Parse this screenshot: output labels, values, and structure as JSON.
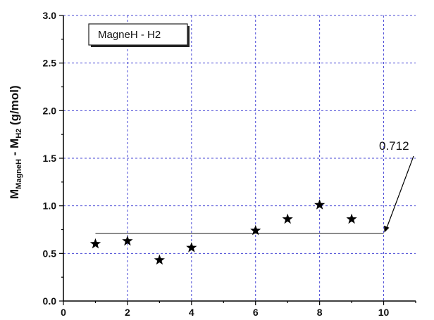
{
  "chart_data": {
    "type": "scatter",
    "xlabel_parts": {
      "main1": "M",
      "sub1": "MagneH",
      "mid": " - M",
      "sub2": "H2",
      "tail": " (g/mol)"
    },
    "xlim": [
      0,
      11
    ],
    "ylim": [
      0,
      3.0
    ],
    "x_ticks": [
      0,
      2,
      4,
      6,
      8,
      10
    ],
    "y_ticks": [
      0.0,
      0.5,
      1.0,
      1.5,
      2.0,
      2.5,
      3.0
    ],
    "y_tick_labels": [
      "0.0",
      "0.5",
      "1.0",
      "1.5",
      "2.0",
      "2.5",
      "3.0"
    ],
    "grid": true,
    "legend_position": "top-left",
    "series": [
      {
        "name": "MagneH - H2",
        "marker": "star",
        "color": "#000000",
        "points": [
          {
            "x": 1,
            "y": 0.6
          },
          {
            "x": 2,
            "y": 0.63
          },
          {
            "x": 3,
            "y": 0.43
          },
          {
            "x": 4,
            "y": 0.56
          },
          {
            "x": 6,
            "y": 0.74
          },
          {
            "x": 7,
            "y": 0.86
          },
          {
            "x": 8,
            "y": 1.01
          },
          {
            "x": 9,
            "y": 0.86
          }
        ]
      }
    ],
    "reference_line": {
      "x_start": 1,
      "x_end": 10,
      "y": 0.712,
      "color": "#555555"
    },
    "annotation": {
      "text": "0.712",
      "points_to": {
        "x": 10,
        "y": 0.712
      }
    },
    "grid_color": "#4a4ad6"
  }
}
